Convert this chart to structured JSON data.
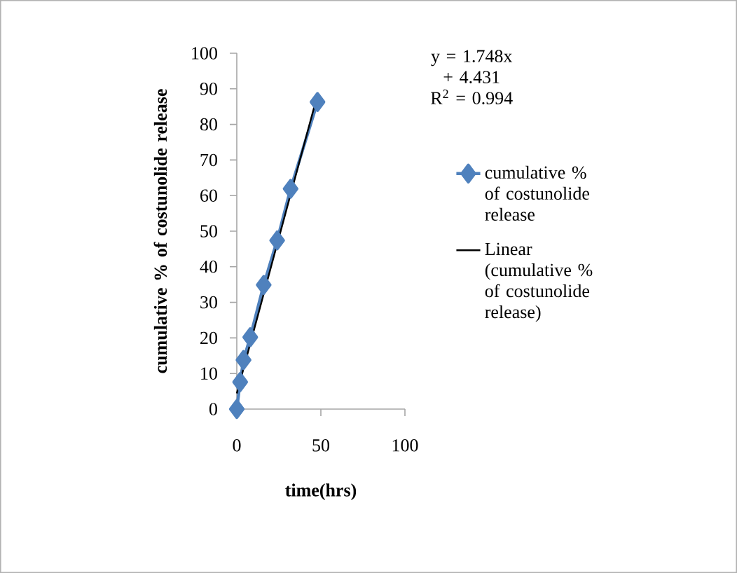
{
  "chart_data": {
    "type": "line",
    "xlabel": "time(hrs)",
    "ylabel": "cumulative % of costunolide release",
    "xlim": [
      0,
      100
    ],
    "xticks": [
      0,
      50,
      100
    ],
    "ylim": [
      0,
      100
    ],
    "yticks": [
      0,
      10,
      20,
      30,
      40,
      50,
      60,
      70,
      80,
      90,
      100
    ],
    "series": [
      {
        "name": "cumulative % of costunolide release",
        "marker": "diamond",
        "color": "#4f81bd",
        "x": [
          0,
          2,
          4,
          8,
          16,
          24,
          32,
          48
        ],
        "values": [
          0,
          7.6,
          13.8,
          20.2,
          34.9,
          47.4,
          61.9,
          86.3
        ]
      },
      {
        "name": "Linear (cumulative % of costunolide release)",
        "marker": "none",
        "color": "#000000",
        "x": [
          0,
          48
        ],
        "values": [
          4.4,
          88.3
        ]
      }
    ],
    "annotations": [
      "y = 1.748x + 4.431",
      "R$^{2}$ = 0.994"
    ],
    "legend": "right",
    "grid": false
  }
}
